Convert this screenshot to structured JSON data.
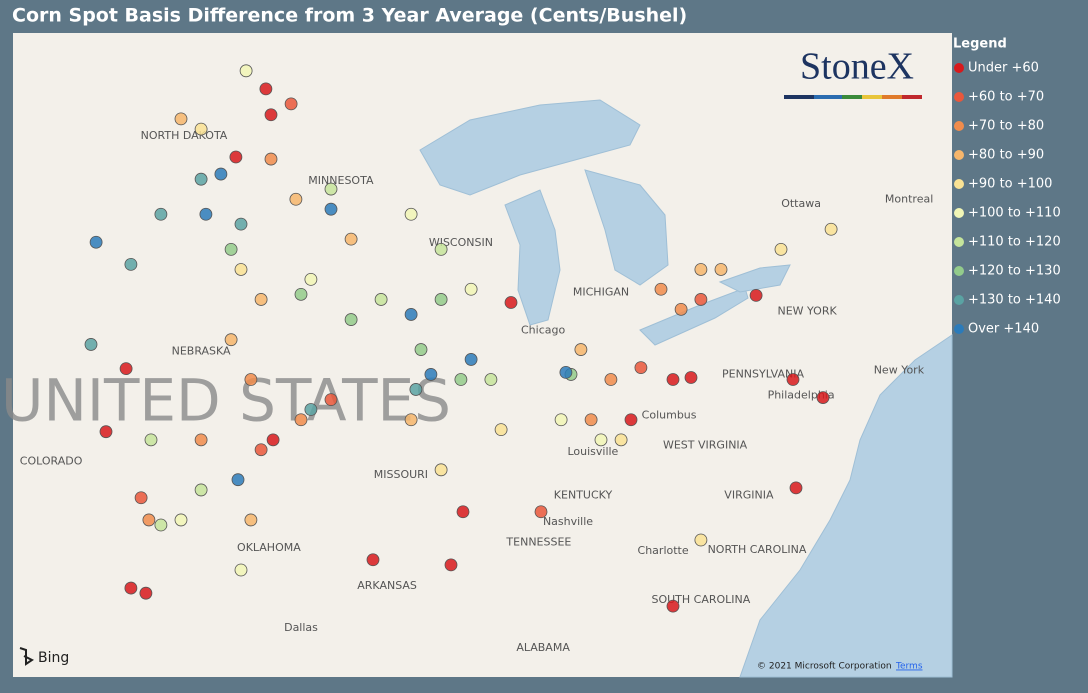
{
  "chart_data": {
    "type": "scatter",
    "title": "Corn Spot Basis Difference from 3 Year Average (Cents/Bushel)",
    "legend_title": "Legend",
    "logo": "StoneX",
    "provider": "Bing",
    "attribution": "© 2021 Microsoft Corporation",
    "terms": "Terms",
    "xlim": [
      -105.2,
      -73.9
    ],
    "ylim": [
      31.7,
      50.6
    ],
    "series": [
      {
        "name": "Under +60",
        "color": "#d7191c",
        "x": [
          -96.77,
          -96.6,
          -97.77,
          -80.43,
          -83.2,
          -82.6,
          -79.2,
          -78.2,
          -79.1,
          -83.2,
          -101.27,
          -100.77,
          -90.2,
          -90.6,
          -93.2,
          -96.53,
          -101.43,
          -88.6,
          -84.6,
          -102.1
        ],
        "y": [
          48.96,
          48.2,
          46.96,
          42.9,
          40.43,
          40.49,
          40.43,
          39.9,
          37.25,
          33.78,
          34.31,
          34.16,
          36.55,
          34.99,
          35.14,
          38.66,
          40.75,
          42.69,
          39.25,
          38.9
        ]
      },
      {
        "name": "+60 to +70",
        "color": "#e9573b",
        "x": [
          -95.93,
          -84.27,
          -82.27,
          -100.93,
          -96.93,
          -87.6,
          -94.6
        ],
        "y": [
          48.52,
          40.78,
          42.78,
          36.96,
          38.37,
          36.55,
          39.84
        ]
      },
      {
        "name": "+70 to +80",
        "color": "#f08c4c",
        "x": [
          -97.27,
          -96.6,
          -85.27,
          -82.93,
          -98.93,
          -100.67,
          -95.6,
          -85.93,
          -83.6
        ],
        "y": [
          40.43,
          46.9,
          40.43,
          42.49,
          38.66,
          36.31,
          39.25,
          39.25,
          43.08
        ]
      },
      {
        "name": "+80 to +90",
        "color": "#f6b66c",
        "x": [
          -97.93,
          -96.93,
          -93.93,
          -95.77,
          -97.27,
          -82.27,
          -86.27,
          -91.93,
          -81.6,
          -99.6
        ],
        "y": [
          41.6,
          42.78,
          44.55,
          45.72,
          36.31,
          43.66,
          41.31,
          39.25,
          43.66,
          48.08
        ]
      },
      {
        "name": "+90 to +100",
        "color": "#f9e294",
        "x": [
          -98.93,
          -97.6,
          -90.93,
          -88.93,
          -84.93,
          -79.6,
          -77.93,
          -82.27
        ],
        "y": [
          47.78,
          43.66,
          37.78,
          38.96,
          38.66,
          44.25,
          44.84,
          35.72
        ]
      },
      {
        "name": "+100 to +110",
        "color": "#f1f6b6",
        "x": [
          -99.6,
          -97.6,
          -95.27,
          -89.93,
          -86.93,
          -85.6,
          -91.93,
          -97.43
        ],
        "y": [
          36.31,
          34.84,
          43.37,
          43.08,
          39.25,
          38.66,
          45.28,
          49.49
        ]
      },
      {
        "name": "+110 to +120",
        "color": "#c5e49b",
        "x": [
          -94.6,
          -92.93,
          -90.93,
          -100.6,
          -98.93,
          -89.27,
          -100.27
        ],
        "y": [
          46.02,
          42.78,
          44.25,
          38.66,
          37.19,
          40.43,
          36.16
        ]
      },
      {
        "name": "+120 to +130",
        "color": "#93cb8b",
        "x": [
          -95.6,
          -93.93,
          -91.6,
          -90.93,
          -97.93,
          -90.27,
          -86.6
        ],
        "y": [
          42.93,
          42.19,
          41.31,
          42.78,
          44.25,
          40.43,
          40.58
        ]
      },
      {
        "name": "+130 to +140",
        "color": "#5aa3a3",
        "x": [
          -100.27,
          -97.6,
          -102.6,
          -95.27,
          -91.77,
          -101.27,
          -98.93
        ],
        "y": [
          45.28,
          44.99,
          41.46,
          39.55,
          40.14,
          43.81,
          46.31
        ]
      },
      {
        "name": "Over +140",
        "color": "#2b7bba",
        "x": [
          -98.27,
          -98.77,
          -102.43,
          -89.93,
          -91.27,
          -91.93,
          -94.6,
          -97.7,
          -86.77
        ],
        "y": [
          46.46,
          45.28,
          44.46,
          41.02,
          40.58,
          42.34,
          45.43,
          37.49,
          40.64
        ]
      }
    ],
    "annotations": [
      {
        "text": "UNITED STATES",
        "x": -98.1,
        "y": 39.7
      },
      {
        "text": "NORTH DAKOTA",
        "x": -99.5,
        "y": 47.58
      },
      {
        "text": "MINNESOTA",
        "x": -94.27,
        "y": 46.25
      },
      {
        "text": "WISCONSIN",
        "x": -90.27,
        "y": 44.43
      },
      {
        "text": "MICHIGAN",
        "x": -85.6,
        "y": 42.99
      },
      {
        "text": "Chicago",
        "x": -87.53,
        "y": 41.87
      },
      {
        "text": "NEBRASKA",
        "x": -98.93,
        "y": 41.25
      },
      {
        "text": "COLORADO",
        "x": -103.93,
        "y": 38.02
      },
      {
        "text": "MISSOURI",
        "x": -92.27,
        "y": 37.63
      },
      {
        "text": "KENTUCKY",
        "x": -86.2,
        "y": 37.02
      },
      {
        "text": "TENNESSEE",
        "x": -87.67,
        "y": 35.64
      },
      {
        "text": "OKLAHOMA",
        "x": -96.67,
        "y": 35.49
      },
      {
        "text": "ARKANSAS",
        "x": -92.73,
        "y": 34.37
      },
      {
        "text": "Dallas",
        "x": -95.6,
        "y": 33.14
      },
      {
        "text": "ALABAMA",
        "x": -87.53,
        "y": 32.55
      },
      {
        "text": "WEST VIRGINIA",
        "x": -82.13,
        "y": 38.49
      },
      {
        "text": "VIRGINIA",
        "x": -80.67,
        "y": 37.02
      },
      {
        "text": "NORTH CAROLINA",
        "x": -80.4,
        "y": 35.43
      },
      {
        "text": "Charlotte",
        "x": -83.53,
        "y": 35.4
      },
      {
        "text": "SOUTH CAROLINA",
        "x": -82.27,
        "y": 33.96
      },
      {
        "text": "PENNSYLVANIA",
        "x": -80.2,
        "y": 40.58
      },
      {
        "text": "Philadelphia",
        "x": -78.93,
        "y": 39.96
      },
      {
        "text": "NEW YORK",
        "x": -78.73,
        "y": 42.43
      },
      {
        "text": "New York",
        "x": -75.67,
        "y": 40.69
      },
      {
        "text": "Ottawa",
        "x": -78.93,
        "y": 45.58
      },
      {
        "text": "Montreal",
        "x": -75.33,
        "y": 45.72
      },
      {
        "text": "Columbus",
        "x": -83.33,
        "y": 39.37
      },
      {
        "text": "Louisville",
        "x": -85.87,
        "y": 38.31
      },
      {
        "text": "Nashville",
        "x": -86.7,
        "y": 36.25
      }
    ]
  }
}
